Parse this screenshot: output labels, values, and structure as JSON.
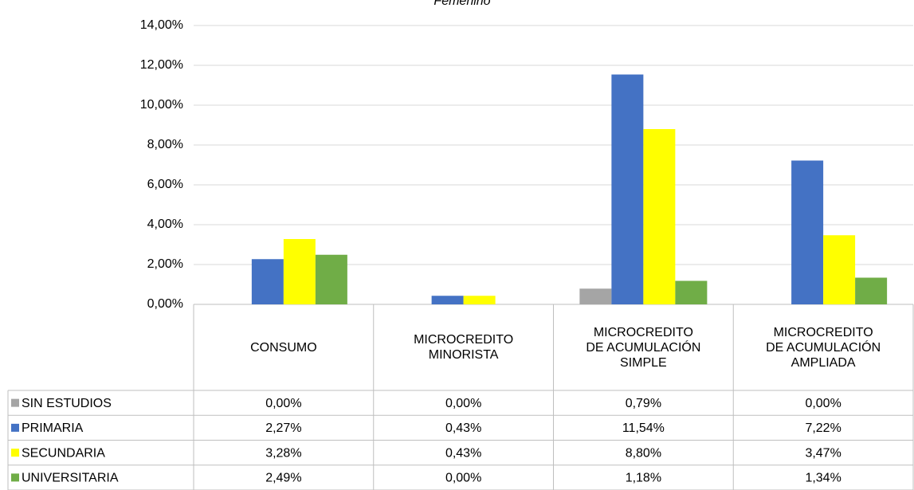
{
  "chart_data": {
    "type": "bar",
    "title": "Femenino",
    "categories": [
      "CONSUMO",
      "MICROCREDITO MINORISTA",
      "MICROCREDITO DE ACUMULACIÓN SIMPLE",
      "MICROCREDITO DE ACUMULACIÓN AMPLIADA"
    ],
    "series": [
      {
        "name": "SIN ESTUDIOS",
        "color": "#a5a5a5",
        "values": [
          0,
          0,
          0.79,
          0
        ],
        "value_labels": [
          "0,00%",
          "0,00%",
          "0,79%",
          "0,00%"
        ]
      },
      {
        "name": "PRIMARIA",
        "color": "#4472c4",
        "values": [
          2.27,
          0.43,
          11.54,
          7.22
        ],
        "value_labels": [
          "2,27%",
          "0,43%",
          "11,54%",
          "7,22%"
        ]
      },
      {
        "name": "SECUNDARIA",
        "color": "#ffff00",
        "values": [
          3.28,
          0.43,
          8.8,
          3.47
        ],
        "value_labels": [
          "3,28%",
          "0,43%",
          "8,80%",
          "3,47%"
        ]
      },
      {
        "name": "UNIVERSITARIA",
        "color": "#70ad47",
        "values": [
          2.49,
          0,
          1.18,
          1.34
        ],
        "value_labels": [
          "2,49%",
          "0,00%",
          "1,18%",
          "1,34%"
        ]
      }
    ],
    "ylim": [
      0,
      14
    ],
    "yticks": [
      {
        "value": 0,
        "label": "0,00%"
      },
      {
        "value": 2,
        "label": "2,00%"
      },
      {
        "value": 4,
        "label": "4,00%"
      },
      {
        "value": 6,
        "label": "6,00%"
      },
      {
        "value": 8,
        "label": "8,00%"
      },
      {
        "value": 10,
        "label": "10,00%"
      },
      {
        "value": 12,
        "label": "12,00%"
      },
      {
        "value": 14,
        "label": "14,00%"
      }
    ],
    "grid": true
  }
}
